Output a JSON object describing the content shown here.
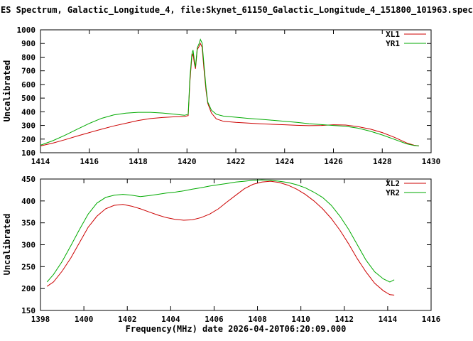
{
  "title": "ES Spectrum, Galactic_Longitude_4, file:Skynet_61150_Galactic_Longitude_4_151800_101963.spec",
  "xlabel": "Frequency(MHz) date 2026-04-20T06:20:09.000",
  "colors": {
    "line1": "#cc0000",
    "line2": "#00aa00",
    "axis": "#000000",
    "background": "#ffffff"
  },
  "chart_data": [
    {
      "type": "line",
      "ylabel": "Uncalibrated",
      "xlim": [
        1414,
        1430
      ],
      "ylim": [
        100,
        1000
      ],
      "xticks": [
        1414,
        1416,
        1418,
        1420,
        1422,
        1424,
        1426,
        1428,
        1430
      ],
      "yticks": [
        100,
        200,
        300,
        400,
        500,
        600,
        700,
        800,
        900,
        1000
      ],
      "grid": false,
      "legend_position": "top-right",
      "series": [
        {
          "name": "XL1",
          "color": "#cc0000",
          "x": [
            1414,
            1414.5,
            1415,
            1415.5,
            1416,
            1416.5,
            1417,
            1417.5,
            1418,
            1418.5,
            1419,
            1419.5,
            1419.9,
            1420.05,
            1420.12,
            1420.2,
            1420.25,
            1420.3,
            1420.35,
            1420.42,
            1420.5,
            1420.55,
            1420.62,
            1420.7,
            1420.78,
            1420.85,
            1421,
            1421.2,
            1421.5,
            1422,
            1422.5,
            1423,
            1423.5,
            1424,
            1424.5,
            1425,
            1425.5,
            1426,
            1426.5,
            1427,
            1427.5,
            1428,
            1428.5,
            1429,
            1429.3,
            1429.5
          ],
          "y": [
            150,
            170,
            195,
            222,
            248,
            272,
            296,
            316,
            336,
            350,
            358,
            363,
            366,
            372,
            620,
            800,
            825,
            755,
            715,
            855,
            880,
            900,
            872,
            705,
            555,
            462,
            392,
            348,
            330,
            322,
            317,
            312,
            308,
            305,
            301,
            298,
            300,
            305,
            303,
            291,
            274,
            248,
            213,
            172,
            155,
            150
          ]
        },
        {
          "name": "YR1",
          "color": "#00aa00",
          "x": [
            1414,
            1414.5,
            1415,
            1415.5,
            1416,
            1416.5,
            1417,
            1417.5,
            1418,
            1418.5,
            1419,
            1419.5,
            1419.9,
            1420.05,
            1420.12,
            1420.2,
            1420.25,
            1420.3,
            1420.35,
            1420.42,
            1420.5,
            1420.55,
            1420.62,
            1420.7,
            1420.78,
            1420.85,
            1421,
            1421.2,
            1421.5,
            1422,
            1422.5,
            1423,
            1423.5,
            1424,
            1424.5,
            1425,
            1425.5,
            1426,
            1426.5,
            1427,
            1427.5,
            1428,
            1428.5,
            1429,
            1429.3,
            1429.5
          ],
          "y": [
            155,
            188,
            228,
            272,
            315,
            352,
            377,
            390,
            396,
            396,
            391,
            382,
            374,
            382,
            650,
            820,
            852,
            780,
            728,
            868,
            900,
            930,
            903,
            738,
            578,
            472,
            412,
            382,
            368,
            360,
            352,
            345,
            338,
            330,
            322,
            313,
            306,
            300,
            294,
            280,
            258,
            230,
            198,
            165,
            153,
            150
          ]
        }
      ]
    },
    {
      "type": "line",
      "ylabel": "Uncalibrated",
      "xlim": [
        1398,
        1416
      ],
      "ylim": [
        150,
        450
      ],
      "xticks": [
        1398,
        1400,
        1402,
        1404,
        1406,
        1408,
        1410,
        1412,
        1414,
        1416
      ],
      "yticks": [
        150,
        200,
        250,
        300,
        350,
        400,
        450
      ],
      "grid": false,
      "legend_position": "top-right",
      "series": [
        {
          "name": "XL2",
          "color": "#cc0000",
          "x": [
            1398.3,
            1398.6,
            1399,
            1399.4,
            1399.8,
            1400.2,
            1400.6,
            1401,
            1401.4,
            1401.8,
            1402.2,
            1402.6,
            1403,
            1403.4,
            1403.8,
            1404.2,
            1404.6,
            1405,
            1405.4,
            1405.8,
            1406.2,
            1406.6,
            1407,
            1407.4,
            1407.8,
            1408.2,
            1408.6,
            1409,
            1409.4,
            1409.8,
            1410.2,
            1410.6,
            1411,
            1411.4,
            1411.8,
            1412.2,
            1412.6,
            1413,
            1413.4,
            1413.8,
            1414.1,
            1414.3
          ],
          "y": [
            205,
            215,
            240,
            270,
            305,
            340,
            365,
            382,
            390,
            392,
            388,
            382,
            375,
            368,
            362,
            358,
            356,
            357,
            362,
            370,
            382,
            398,
            413,
            428,
            438,
            443,
            445,
            442,
            436,
            427,
            415,
            400,
            382,
            360,
            333,
            302,
            268,
            238,
            212,
            195,
            186,
            185
          ]
        },
        {
          "name": "YR2",
          "color": "#00aa00",
          "x": [
            1398.3,
            1398.6,
            1399,
            1399.4,
            1399.8,
            1400.2,
            1400.6,
            1401,
            1401.4,
            1401.8,
            1402.2,
            1402.6,
            1403,
            1403.4,
            1403.8,
            1404.2,
            1404.6,
            1405,
            1405.4,
            1405.8,
            1406.2,
            1406.6,
            1407,
            1407.4,
            1407.8,
            1408.2,
            1408.6,
            1409,
            1409.4,
            1409.8,
            1410.2,
            1410.6,
            1411,
            1411.4,
            1411.8,
            1412.2,
            1412.6,
            1413,
            1413.4,
            1413.8,
            1414.1,
            1414.3
          ],
          "y": [
            215,
            232,
            262,
            298,
            335,
            370,
            395,
            408,
            413,
            415,
            413,
            410,
            412,
            415,
            418,
            420,
            423,
            427,
            430,
            434,
            437,
            440,
            443,
            445,
            447,
            448,
            447,
            445,
            442,
            437,
            430,
            420,
            408,
            390,
            365,
            335,
            300,
            265,
            238,
            222,
            215,
            220
          ]
        }
      ]
    }
  ]
}
